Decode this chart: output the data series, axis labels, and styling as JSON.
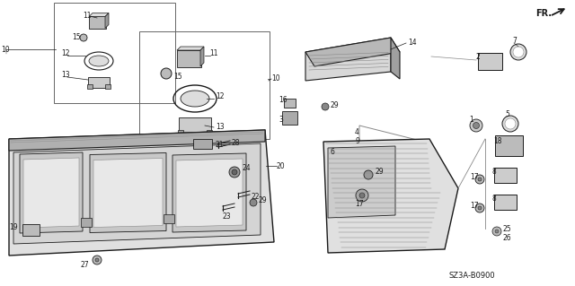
{
  "bg_color": "#ffffff",
  "diagram_code": "SZ3A-B0900",
  "line_color": "#1a1a1a",
  "gray_fill": "#cccccc",
  "light_fill": "#e8e8e8",
  "mid_fill": "#aaaaaa"
}
